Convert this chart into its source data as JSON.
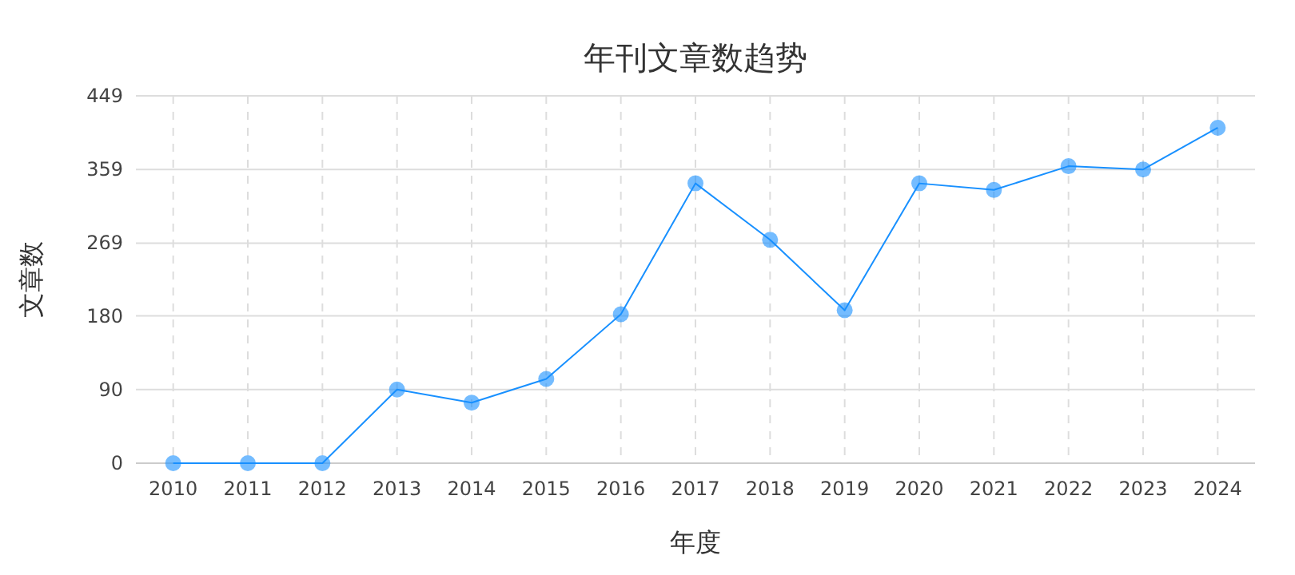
{
  "chart_data": {
    "type": "line",
    "title": "年刊文章数趋势",
    "xlabel": "年度",
    "ylabel": "文章数",
    "categories": [
      "2010",
      "2011",
      "2012",
      "2013",
      "2014",
      "2015",
      "2016",
      "2017",
      "2018",
      "2019",
      "2020",
      "2021",
      "2022",
      "2023",
      "2024"
    ],
    "series": [
      {
        "color": "#1890ff",
        "values": [
          0,
          0,
          0,
          90,
          74,
          103,
          182,
          342,
          273,
          187,
          342,
          334,
          363,
          359,
          410
        ]
      }
    ],
    "ylim": [
      0,
      449
    ],
    "yticks": [
      0,
      90,
      180,
      269,
      359,
      449
    ],
    "grid": true,
    "marker": "circle",
    "line_style": "solid"
  }
}
